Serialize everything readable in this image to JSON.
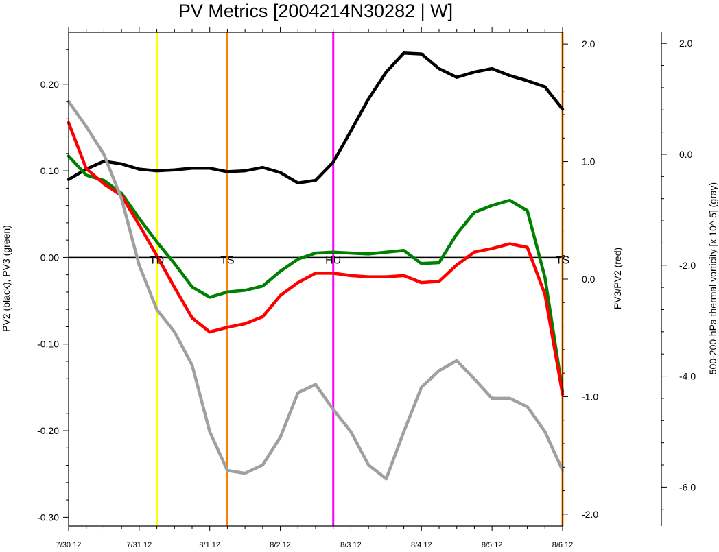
{
  "chart_data": {
    "type": "line",
    "title": "PV Metrics [2004214N30282 | W]",
    "ylabel_left": "PV2 (black), PV3 (green)",
    "ylabel_right": "PV3/PV2 (red)",
    "ylabel_far_right": "500-200-hPa thermal vorticity [x 10^-5] (gray)",
    "xlim": [
      0,
      28
    ],
    "x_ticks": [
      {
        "x": 0,
        "label": "7/30 12"
      },
      {
        "x": 4,
        "label": "7/31 12"
      },
      {
        "x": 8,
        "label": "8/1 12"
      },
      {
        "x": 12,
        "label": "8/2 12"
      },
      {
        "x": 16,
        "label": "8/3 12"
      },
      {
        "x": 20,
        "label": "8/4 12"
      },
      {
        "x": 24,
        "label": "8/5 12"
      },
      {
        "x": 28,
        "label": "8/6 12"
      }
    ],
    "axes": {
      "left": {
        "ylim": [
          -0.31,
          0.26
        ],
        "ticks": [
          "0.20",
          "0.10",
          "0.00",
          "-0.10",
          "-0.20",
          "-0.30"
        ],
        "tick_values": [
          0.2,
          0.1,
          0.0,
          -0.1,
          -0.2,
          -0.3
        ]
      },
      "right": {
        "ylim": [
          -2.1,
          2.1
        ],
        "ticks": [
          "2.0",
          "1.0",
          "0.0",
          "-1.0",
          "-2.0"
        ],
        "tick_values": [
          2.0,
          1.0,
          0.0,
          -1.0,
          -2.0
        ]
      },
      "far_right": {
        "ylim": [
          -6.7,
          2.2
        ],
        "ticks": [
          "2.0",
          "0.0",
          "-2.0",
          "-4.0",
          "-6.0"
        ],
        "tick_values": [
          2.0,
          0.0,
          -2.0,
          -4.0,
          -6.0
        ]
      }
    },
    "zero_line": 0.0,
    "stage_markers": [
      {
        "x": 5,
        "label": "TD",
        "color": "#ffff00"
      },
      {
        "x": 9,
        "label": "TS",
        "color": "#ff8000"
      },
      {
        "x": 15,
        "label": "HU",
        "color": "#ff00ff"
      },
      {
        "x": 28,
        "label": "TS",
        "color": "#ff8000"
      }
    ],
    "series": [
      {
        "name": "PV2",
        "color": "#000000",
        "axis": "left",
        "x": [
          0,
          1,
          2,
          3,
          4,
          5,
          6,
          7,
          8,
          9,
          10,
          11,
          12,
          13,
          14,
          15,
          16,
          17,
          18,
          19,
          20,
          21,
          22,
          23,
          24,
          25,
          26,
          27,
          28
        ],
        "values": [
          0.09,
          0.102,
          0.111,
          0.108,
          0.102,
          0.1,
          0.101,
          0.103,
          0.103,
          0.099,
          0.1,
          0.104,
          0.098,
          0.086,
          0.089,
          0.11,
          0.146,
          0.183,
          0.214,
          0.236,
          0.235,
          0.218,
          0.208,
          0.214,
          0.218,
          0.21,
          0.204,
          0.197,
          0.171
        ]
      },
      {
        "name": "PV3",
        "color": "#008000",
        "axis": "left",
        "x": [
          0,
          1,
          2,
          3,
          4,
          5,
          6,
          7,
          8,
          9,
          10,
          11,
          12,
          13,
          14,
          15,
          16,
          17,
          18,
          19,
          20,
          21,
          22,
          23,
          24,
          25,
          26,
          27,
          28
        ],
        "values": [
          0.117,
          0.095,
          0.089,
          0.074,
          0.045,
          0.018,
          -0.007,
          -0.034,
          -0.046,
          -0.04,
          -0.038,
          -0.033,
          -0.016,
          -0.002,
          0.005,
          0.006,
          0.005,
          0.004,
          0.006,
          0.008,
          -0.007,
          -0.006,
          0.027,
          0.052,
          0.06,
          0.066,
          0.054,
          -0.023,
          -0.155
        ]
      },
      {
        "name": "PV3/PV2",
        "color": "#ff0000",
        "axis": "right",
        "x": [
          0,
          1,
          2,
          3,
          4,
          5,
          6,
          7,
          8,
          9,
          10,
          11,
          12,
          13,
          14,
          15,
          16,
          17,
          18,
          19,
          20,
          21,
          22,
          23,
          24,
          25,
          26,
          27,
          28
        ],
        "values": [
          1.33,
          0.94,
          0.81,
          0.71,
          0.46,
          0.2,
          -0.07,
          -0.33,
          -0.45,
          -0.41,
          -0.38,
          -0.32,
          -0.14,
          -0.03,
          0.05,
          0.05,
          0.03,
          0.02,
          0.02,
          0.03,
          -0.03,
          -0.02,
          0.12,
          0.23,
          0.26,
          0.3,
          0.27,
          -0.13,
          -0.98
        ]
      },
      {
        "name": "thermal vorticity",
        "color": "#a0a0a0",
        "axis": "far_right",
        "x": [
          0,
          1,
          2,
          3,
          4,
          5,
          6,
          7,
          8,
          9,
          10,
          11,
          12,
          13,
          14,
          15,
          16,
          17,
          18,
          19,
          20,
          21,
          22,
          23,
          24,
          25,
          26,
          27,
          28
        ],
        "values": [
          0.95,
          0.5,
          0.0,
          -0.8,
          -2.0,
          -2.8,
          -3.2,
          -3.8,
          -5.0,
          -5.7,
          -5.75,
          -5.6,
          -5.1,
          -4.3,
          -4.15,
          -4.6,
          -5.0,
          -5.6,
          -5.85,
          -5.0,
          -4.2,
          -3.9,
          -3.72,
          -4.05,
          -4.4,
          -4.4,
          -4.55,
          -5.0,
          -5.7
        ]
      }
    ]
  }
}
